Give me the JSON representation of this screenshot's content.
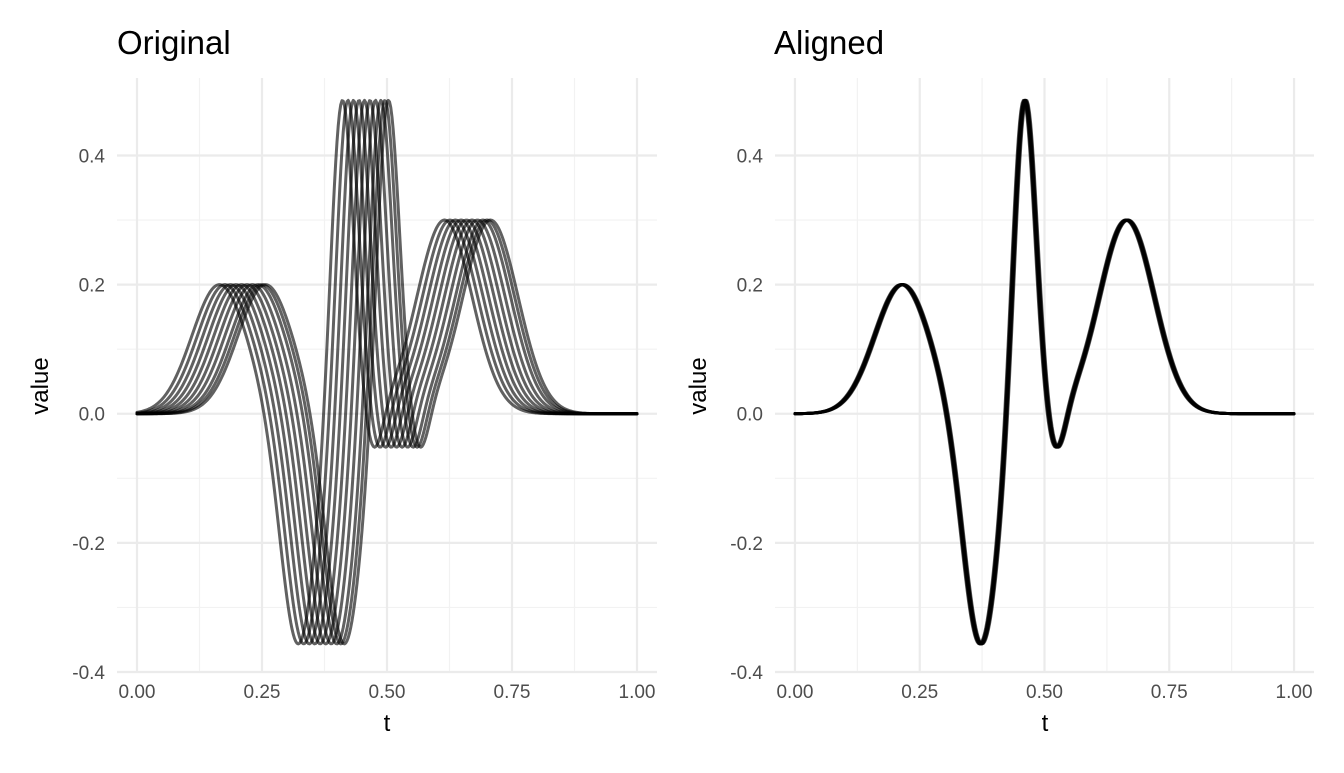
{
  "chart_data": [
    {
      "type": "line",
      "title": "Original",
      "xlabel": "t",
      "ylabel": "value",
      "xlim": [
        -0.04,
        1.04
      ],
      "ylim": [
        -0.4,
        0.52
      ],
      "xticks": [
        0,
        0.25,
        0.5,
        0.75,
        1
      ],
      "xtick_labels": [
        "0.00",
        "0.25",
        "0.50",
        "0.75",
        "1.00"
      ],
      "yticks": [
        -0.4,
        -0.2,
        0,
        0.2,
        0.4
      ],
      "ytick_labels": [
        "-0.4",
        "-0.2",
        "0.0",
        "0.2",
        "0.4"
      ],
      "grid": true,
      "legend": "none",
      "description_of_series": "10 shifted copies of the same waveform",
      "waveform_peaks": {
        "first_peak": {
          "t": 0.215,
          "value": 0.2
        },
        "trough": {
          "t": 0.372,
          "value": -0.36
        },
        "max_peak": {
          "t": 0.46,
          "value": 0.5
        },
        "small_dip": {
          "t": 0.524,
          "value": -0.07
        },
        "last_peak": {
          "t": 0.665,
          "value": 0.3
        }
      },
      "series_shifts": [
        -0.05,
        -0.039,
        -0.028,
        -0.017,
        -0.006,
        0.005,
        0.016,
        0.027,
        0.035,
        0.042
      ]
    },
    {
      "type": "line",
      "title": "Aligned",
      "xlabel": "t",
      "ylabel": "value",
      "xlim": [
        -0.04,
        1.04
      ],
      "ylim": [
        -0.4,
        0.52
      ],
      "xticks": [
        0,
        0.25,
        0.5,
        0.75,
        1
      ],
      "xtick_labels": [
        "0.00",
        "0.25",
        "0.50",
        "0.75",
        "1.00"
      ],
      "yticks": [
        -0.4,
        -0.2,
        0,
        0.2,
        0.4
      ],
      "ytick_labels": [
        "-0.4",
        "-0.2",
        "0.0",
        "0.2",
        "0.4"
      ],
      "grid": true,
      "legend": "none",
      "waveform_peaks": {
        "first_peak": {
          "t": 0.215,
          "value": 0.2
        },
        "trough": {
          "t": 0.372,
          "value": -0.36
        },
        "max_peak": {
          "t": 0.46,
          "value": 0.5
        },
        "small_dip": {
          "t": 0.524,
          "value": -0.07
        },
        "last_peak": {
          "t": 0.665,
          "value": 0.3
        }
      },
      "series_shifts": [
        -0.003,
        -0.002,
        -0.001,
        0,
        0.001,
        0.002,
        0.003,
        0.001,
        -0.001,
        0.0
      ]
    }
  ]
}
